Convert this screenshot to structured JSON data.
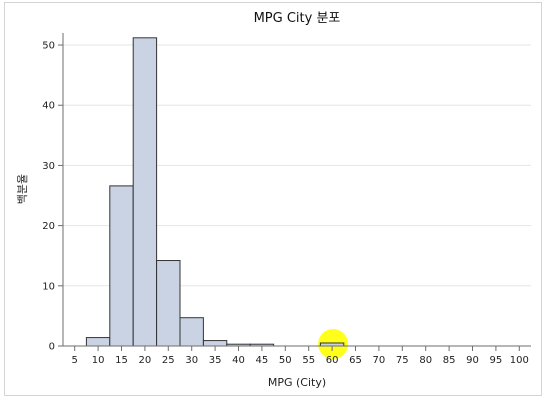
{
  "chart_data": {
    "type": "bar",
    "title": "MPG City 분포",
    "xlabel": "MPG (City)",
    "ylabel": "백분율",
    "xlim": [
      2.5,
      102.5
    ],
    "ylim": [
      0,
      52
    ],
    "x_ticks": [
      5,
      10,
      15,
      20,
      25,
      30,
      35,
      40,
      45,
      50,
      55,
      60,
      65,
      70,
      75,
      80,
      85,
      90,
      95,
      100
    ],
    "y_ticks": [
      0,
      10,
      20,
      30,
      40,
      50
    ],
    "grid": true,
    "bin_width": 5,
    "bins": [
      {
        "center": 10,
        "value": 1.4
      },
      {
        "center": 15,
        "value": 26.6
      },
      {
        "center": 20,
        "value": 51.2
      },
      {
        "center": 25,
        "value": 14.2
      },
      {
        "center": 30,
        "value": 4.7
      },
      {
        "center": 35,
        "value": 0.9
      },
      {
        "center": 40,
        "value": 0.3
      },
      {
        "center": 45,
        "value": 0.3
      },
      {
        "center": 60,
        "value": 0.5
      }
    ],
    "colors": {
      "bar_fill": "#c9d3e4",
      "bar_stroke": "#333333",
      "highlight": "#ffff00"
    },
    "highlight_x": 60
  }
}
